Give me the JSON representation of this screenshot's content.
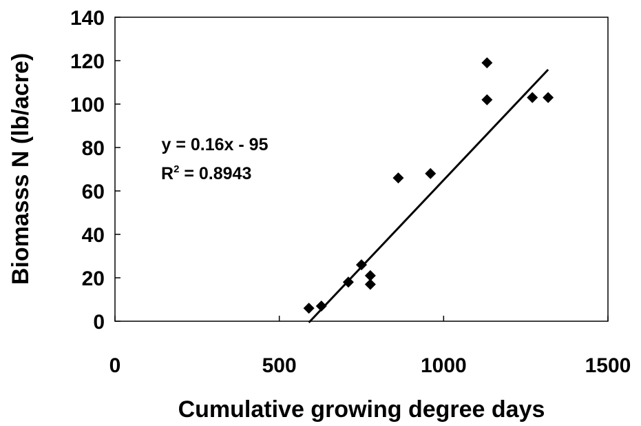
{
  "chart_data": {
    "type": "scatter",
    "title": "",
    "xlabel": "Cumulative growing degree days",
    "ylabel": "Biomasss N (lb/acre)",
    "xlim": [
      0,
      1500
    ],
    "ylim": [
      0,
      140
    ],
    "xticks": [
      0,
      500,
      1000,
      1500
    ],
    "yticks": [
      0,
      20,
      40,
      60,
      80,
      100,
      120,
      140
    ],
    "grid": false,
    "legend": "none",
    "series": [
      {
        "marker": "diamond",
        "color": "#000000",
        "points": [
          {
            "x": 590,
            "y": 6
          },
          {
            "x": 628,
            "y": 7
          },
          {
            "x": 710,
            "y": 18
          },
          {
            "x": 750,
            "y": 26
          },
          {
            "x": 777,
            "y": 21
          },
          {
            "x": 777,
            "y": 17
          },
          {
            "x": 862,
            "y": 66
          },
          {
            "x": 960,
            "y": 68
          },
          {
            "x": 1132,
            "y": 119
          },
          {
            "x": 1132,
            "y": 102
          },
          {
            "x": 1270,
            "y": 103
          },
          {
            "x": 1318,
            "y": 103
          }
        ]
      }
    ],
    "trendline": {
      "type": "linear",
      "slope": 0.16,
      "intercept": -95,
      "x_range": [
        590,
        1318
      ],
      "equation": "y = 0.16x - 95",
      "r2_label": "R",
      "r2_sup": "2",
      "r2_value": " = 0.8943"
    }
  }
}
